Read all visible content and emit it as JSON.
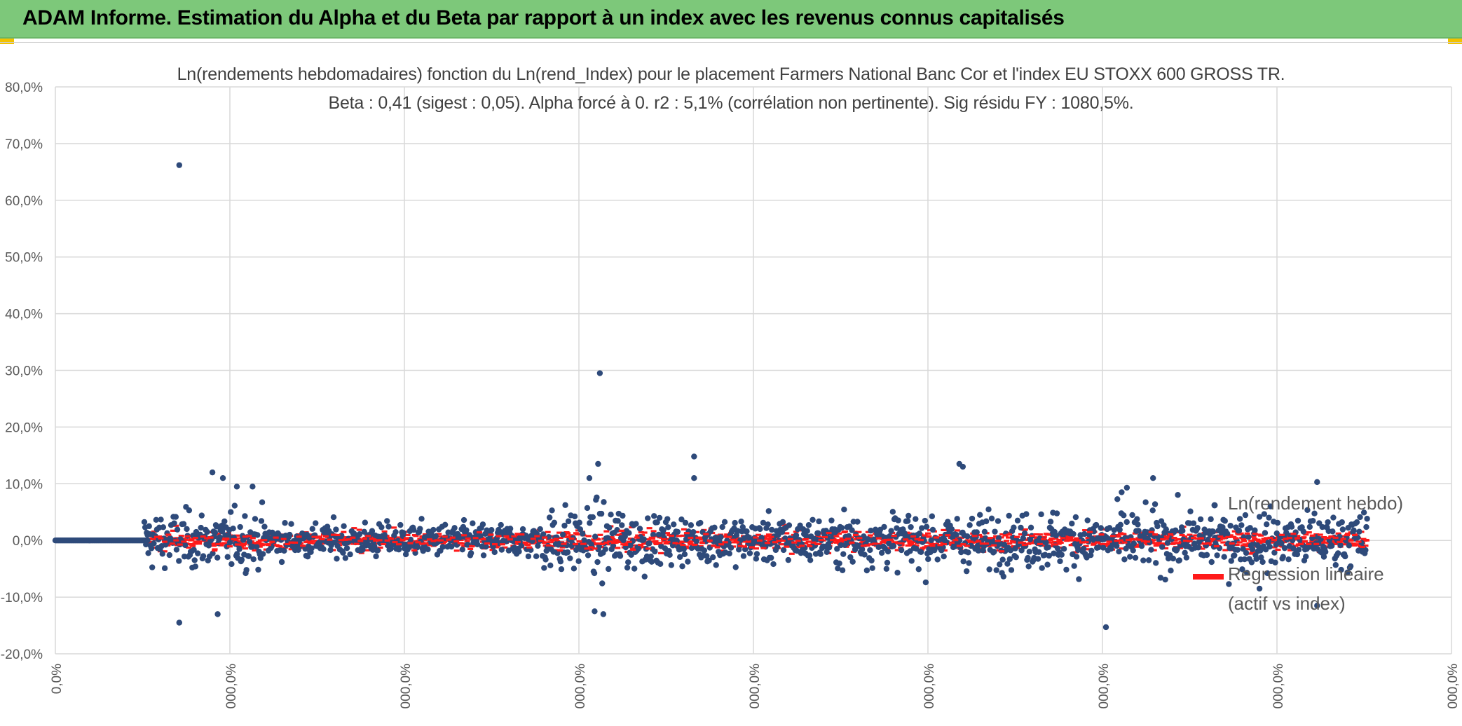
{
  "header": {
    "title": "ADAM Informe. Estimation du Alpha et du Beta par rapport à un index avec les revenus connus capitalisés"
  },
  "colors": {
    "banner": "#7dc87a",
    "scatter": "#2e4a7a",
    "regression": "#ff1a1a",
    "grid": "#d9d9d9",
    "axis_text": "#595959"
  },
  "chart_data": {
    "type": "scatter",
    "title_line1": "Ln(rendements hebdomadaires) fonction du Ln(rend_Index) pour le placement Farmers National Banc Cor et l'index EU STOXX 600 GROSS TR.",
    "title_line2": "Beta : 0,41 (sigest : 0,05). Alpha forcé à 0. r2 : 5,1% (corrélation non pertinente). Sig résidu FY : 1080,5%.",
    "ylim": [
      -20,
      80
    ],
    "yticks": [
      "80,0%",
      "70,0%",
      "60,0%",
      "50,0%",
      "40,0%",
      "30,0%",
      "20,0%",
      "10,0%",
      "0,0%",
      "-10,0%",
      "-20,0%"
    ],
    "ytick_values": [
      80,
      70,
      60,
      50,
      40,
      30,
      20,
      10,
      0,
      -10,
      -20
    ],
    "xlim": [
      0,
      800
    ],
    "xtick_values": [
      0,
      100,
      200,
      300,
      400,
      500,
      600,
      700,
      800
    ],
    "xticks": [
      "0,0%",
      "000,0%",
      "000,0%",
      "000,0%",
      "000,0%",
      "000,0%",
      "000,0%",
      "000,0%",
      "000,0%"
    ],
    "series": [
      {
        "name": "Ln(rendement hebdo)",
        "marker": "circle",
        "flat_zero_segment": [
          0,
          53
        ],
        "scatter_range": [
          51,
          752
        ],
        "typical_spread": 3,
        "outliers": [
          {
            "x": 71,
            "y": 66.2
          },
          {
            "x": 71,
            "y": -14.5
          },
          {
            "x": 90,
            "y": 12.0
          },
          {
            "x": 96,
            "y": 11.0
          },
          {
            "x": 93,
            "y": -13.0
          },
          {
            "x": 104,
            "y": 9.5
          },
          {
            "x": 113,
            "y": 9.5
          },
          {
            "x": 312,
            "y": 29.5
          },
          {
            "x": 311,
            "y": 13.5
          },
          {
            "x": 306,
            "y": 11.0
          },
          {
            "x": 309,
            "y": -12.5
          },
          {
            "x": 314,
            "y": -13.0
          },
          {
            "x": 366,
            "y": 14.8
          },
          {
            "x": 366,
            "y": 11.0
          },
          {
            "x": 518,
            "y": 13.5
          },
          {
            "x": 520,
            "y": 13.0
          },
          {
            "x": 629,
            "y": 11.0
          },
          {
            "x": 602,
            "y": -15.3
          },
          {
            "x": 611,
            "y": 8.5
          },
          {
            "x": 614,
            "y": 9.3
          },
          {
            "x": 723,
            "y": 10.3
          },
          {
            "x": 723,
            "y": -11.5
          },
          {
            "x": 690,
            "y": -8.5
          }
        ]
      },
      {
        "name": "Regression linéaire (actif vs index)",
        "line1": "Regression linéaire",
        "line2": "(actif vs index)",
        "marker": "short red dash",
        "beta": 0.41,
        "typical_spread": 1.2
      }
    ]
  }
}
